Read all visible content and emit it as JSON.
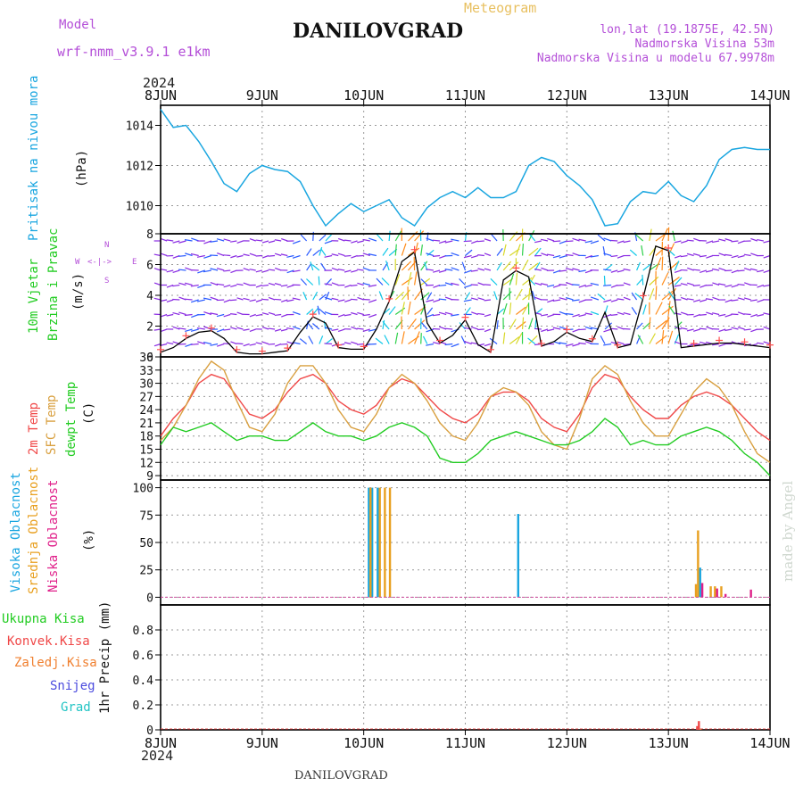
{
  "header": {
    "model_label": "Model",
    "model_name": "wrf-nmm_v3.9.1 e1km",
    "title": "DANILOVGRAD",
    "meteogram_label": "Meteogram",
    "lonlat": "lon,lat (19.1875E, 42.5N)",
    "elevation": "Nadmorska Visina 53m",
    "model_elevation": "Nadmorska Visina u modelu 67.9978m",
    "year_top": "2024",
    "year_bottom": "2024",
    "footer_station": "DANILOVGRAD",
    "watermark": "made by Angel"
  },
  "colors": {
    "pressure": "#1aa6e0",
    "wind_speed": "#000000",
    "gust_marker": "#ff4d4d",
    "temp2m": "#f04848",
    "sfc_temp": "#d9a040",
    "dewpt": "#22cc22",
    "high_cloud": "#1aa6e0",
    "mid_cloud": "#e8a020",
    "low_cloud": "#e0208a",
    "purple_text": "#b44fd8",
    "orange_text": "#e8c060"
  },
  "x_axis": {
    "days": [
      "8JUN",
      "9JUN",
      "10JUN",
      "11JUN",
      "12JUN",
      "13JUN",
      "14JUN"
    ]
  },
  "panels": {
    "pressure": {
      "ylabel_main": "Pritisak na nivou mora",
      "unit": "(hPa)",
      "ticks": [
        "1014",
        "1012",
        "1010"
      ]
    },
    "wind": {
      "ylabel_1": "10m Vjetar",
      "ylabel_2": "Brzina i Pravac",
      "unit": "(m/s)",
      "compass_n": "N",
      "compass_w": "W",
      "compass_e": "E",
      "compass_arrows": "<-|->",
      "compass_s": "S",
      "ticks": [
        "8",
        "6",
        "4",
        "2",
        "0"
      ]
    },
    "temp": {
      "ylabel_1": "2m Temp",
      "ylabel_2": "SFC Temp",
      "ylabel_3": "dewpt Temp",
      "unit": "(C)",
      "ticks": [
        "36",
        "33",
        "30",
        "27",
        "24",
        "21",
        "18",
        "15",
        "12",
        "9"
      ]
    },
    "cloud": {
      "ylabel_1": "Visoka Oblacnost",
      "ylabel_2": "Srednja Oblacnost",
      "ylabel_3": "Niska Oblacnost",
      "unit": "(%)",
      "ticks": [
        "100",
        "75",
        "50",
        "25",
        "0"
      ]
    },
    "precip": {
      "legend_1": "Ukupna Kisa",
      "legend_2": "Konvek.Kisa",
      "legend_3": "Zaledj.Kisa",
      "legend_4": "Snijeg",
      "legend_5": "Grad",
      "unit": "1hr Precip (mm)",
      "ticks": [
        "0.8",
        "0.6",
        "0.4",
        "0.2",
        "0"
      ]
    }
  },
  "chart_data": [
    {
      "type": "line",
      "name": "pressure",
      "x_unit": "hours since 8JUN 00",
      "ylim": [
        1008.6,
        1015
      ],
      "x": [
        0,
        3,
        6,
        9,
        12,
        15,
        18,
        21,
        24,
        27,
        30,
        33,
        36,
        39,
        42,
        45,
        48,
        51,
        54,
        57,
        60,
        63,
        66,
        69,
        72,
        75,
        78,
        81,
        84,
        87,
        90,
        93,
        96,
        99,
        102,
        105,
        108,
        111,
        114,
        117,
        120,
        123,
        126,
        129,
        132,
        135,
        138,
        141,
        144
      ],
      "values": [
        1014.8,
        1013.9,
        1014.0,
        1013.2,
        1012.2,
        1011.1,
        1010.7,
        1011.6,
        1012.0,
        1011.8,
        1011.7,
        1011.2,
        1010.0,
        1009.0,
        1009.6,
        1010.1,
        1009.7,
        1010.0,
        1010.3,
        1009.4,
        1009.0,
        1009.9,
        1010.4,
        1010.7,
        1010.4,
        1010.9,
        1010.4,
        1010.4,
        1010.7,
        1012.0,
        1012.4,
        1012.2,
        1011.5,
        1011.0,
        1010.3,
        1009.0,
        1009.1,
        1010.2,
        1010.7,
        1010.6,
        1011.2,
        1010.5,
        1010.2,
        1011.0,
        1012.3,
        1012.8,
        1012.9,
        1012.8,
        1012.8
      ]
    },
    {
      "type": "line",
      "name": "wind speed",
      "ylim": [
        0,
        8
      ],
      "x": [
        0,
        3,
        6,
        9,
        12,
        15,
        18,
        21,
        24,
        27,
        30,
        33,
        36,
        39,
        42,
        45,
        48,
        51,
        54,
        57,
        60,
        63,
        66,
        69,
        72,
        75,
        78,
        81,
        84,
        87,
        90,
        93,
        96,
        99,
        102,
        105,
        108,
        111,
        114,
        117,
        120,
        123,
        126,
        129,
        132,
        135,
        138,
        141,
        144
      ],
      "values": [
        0.3,
        0.6,
        1.2,
        1.6,
        1.7,
        1.2,
        0.3,
        0.2,
        0.2,
        0.3,
        0.4,
        1.6,
        2.6,
        2.2,
        0.6,
        0.5,
        0.5,
        1.8,
        3.6,
        6.2,
        6.8,
        2.2,
        0.9,
        1.4,
        2.4,
        0.8,
        0.3,
        5.0,
        5.6,
        5.2,
        0.7,
        1.0,
        1.6,
        1.2,
        1.0,
        2.9,
        0.6,
        0.8,
        3.8,
        7.2,
        6.9,
        0.6,
        0.7,
        0.8,
        0.9,
        0.9,
        0.8,
        0.7,
        0.6
      ]
    },
    {
      "type": "line",
      "name": "temperature",
      "ylim": [
        8,
        36
      ],
      "x": [
        0,
        3,
        6,
        9,
        12,
        15,
        18,
        21,
        24,
        27,
        30,
        33,
        36,
        39,
        42,
        45,
        48,
        51,
        54,
        57,
        60,
        63,
        66,
        69,
        72,
        75,
        78,
        81,
        84,
        87,
        90,
        93,
        96,
        99,
        102,
        105,
        108,
        111,
        114,
        117,
        120,
        123,
        126,
        129,
        132,
        135,
        138,
        141,
        144
      ],
      "series": [
        {
          "name": "2m Temp",
          "values": [
            18,
            22,
            25,
            30,
            32,
            31,
            27,
            23,
            22,
            24,
            28,
            31,
            32,
            30,
            26,
            24,
            23,
            25,
            29,
            31,
            30,
            27,
            24,
            22,
            21,
            23,
            27,
            28,
            28,
            26,
            22,
            20,
            19,
            23,
            29,
            32,
            31,
            27,
            24,
            22,
            22,
            25,
            27,
            28,
            27,
            25,
            22,
            19,
            17
          ]
        },
        {
          "name": "SFC Temp",
          "values": [
            17,
            20,
            25,
            31,
            35,
            33,
            26,
            20,
            19,
            23,
            30,
            34,
            34,
            30,
            24,
            20,
            19,
            23,
            29,
            32,
            30,
            26,
            21,
            18,
            17,
            21,
            27,
            29,
            28,
            25,
            19,
            16,
            15,
            22,
            31,
            34,
            32,
            26,
            21,
            18,
            18,
            23,
            28,
            31,
            29,
            25,
            19,
            14,
            12
          ]
        },
        {
          "name": "dewpt Temp",
          "values": [
            16,
            20,
            19,
            20,
            21,
            19,
            17,
            18,
            18,
            17,
            17,
            19,
            21,
            19,
            18,
            18,
            17,
            18,
            20,
            21,
            20,
            18,
            13,
            12,
            12,
            14,
            17,
            18,
            19,
            18,
            17,
            16,
            16,
            17,
            19,
            22,
            20,
            16,
            17,
            16,
            16,
            18,
            19,
            20,
            19,
            17,
            14,
            12,
            9
          ]
        }
      ]
    },
    {
      "type": "bar",
      "name": "cloud cover",
      "ylim": [
        0,
        100
      ],
      "series": [
        {
          "name": "Visoka Oblacnost",
          "x": [
            49.2,
            50.0,
            51.3,
            84.5,
            127.5
          ],
          "values": [
            100,
            100,
            100,
            76,
            27
          ]
        },
        {
          "name": "Srednja Oblacnost",
          "x": [
            49.6,
            51.8,
            53.0,
            54.2,
            126.5,
            127.0,
            130.0,
            131.0,
            132.5
          ],
          "values": [
            100,
            100,
            100,
            100,
            12,
            61,
            10,
            10,
            10
          ]
        },
        {
          "name": "Niska Oblacnost",
          "x": [
            128.0,
            131.5,
            133.5,
            139.5
          ],
          "values": [
            13,
            8,
            3,
            7
          ]
        }
      ]
    },
    {
      "type": "bar",
      "name": "1hr precip",
      "ylim": [
        0,
        1.0
      ],
      "series": [
        {
          "name": "Konvek.Kisa",
          "x": [
            126.8,
            127.2
          ],
          "values": [
            0.03,
            0.07
          ]
        },
        {
          "name": "Zaledj.Kisa",
          "x": [
            127.6
          ],
          "values": [
            0.01
          ]
        }
      ]
    }
  ]
}
